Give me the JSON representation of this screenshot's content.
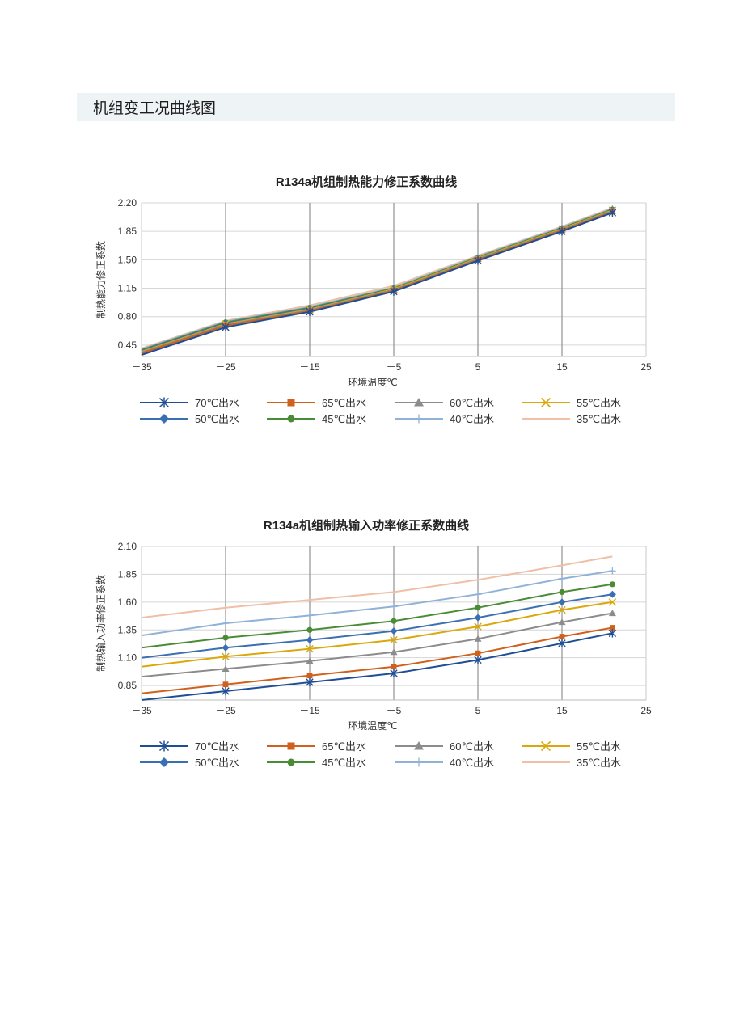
{
  "header": {
    "title": "机组变工况曲线图"
  },
  "colors": {
    "70": "#1f4e96",
    "65": "#d0611c",
    "60": "#8c8c8c",
    "55": "#dba80c",
    "50": "#3b6fb3",
    "45": "#4a8c35",
    "40": "#8fb2d6",
    "35": "#efbfa6"
  },
  "chart_data": [
    {
      "type": "line",
      "title": "R134a机组制热能力修正系数曲线",
      "xlabel": "环境温度℃",
      "ylabel": "制热能力修正系数",
      "x_ticks": [
        "－35",
        "－25",
        "－15",
        "－5",
        "5",
        "15",
        "25"
      ],
      "y_ticks": [
        "2.20",
        "1.85",
        "1.50",
        "1.15",
        "0.80",
        "0.45"
      ],
      "xlim": [
        -35,
        25
      ],
      "ylim": [
        0.31,
        2.2
      ],
      "grid": "vertical and horizontal",
      "legend_position": "bottom",
      "x": [
        -35,
        -25,
        -15,
        -5,
        5,
        15,
        21
      ],
      "series": [
        {
          "name": "70℃出水",
          "key": "70",
          "marker": "asterisk",
          "values": [
            0.33,
            0.67,
            0.86,
            1.11,
            1.49,
            1.85,
            2.08
          ]
        },
        {
          "name": "65℃出水",
          "key": "65",
          "marker": "square",
          "values": [
            0.35,
            0.69,
            0.87,
            1.12,
            1.5,
            1.86,
            2.09
          ]
        },
        {
          "name": "60℃出水",
          "key": "60",
          "marker": "triangle",
          "values": [
            0.36,
            0.7,
            0.88,
            1.13,
            1.51,
            1.87,
            2.1
          ]
        },
        {
          "name": "55℃出水",
          "key": "55",
          "marker": "x",
          "values": [
            0.37,
            0.71,
            0.89,
            1.14,
            1.52,
            1.88,
            2.11
          ]
        },
        {
          "name": "50℃出水",
          "key": "50",
          "marker": "diamond",
          "values": [
            0.38,
            0.72,
            0.9,
            1.14,
            1.52,
            1.88,
            2.11
          ]
        },
        {
          "name": "45℃出水",
          "key": "45",
          "marker": "circle",
          "values": [
            0.39,
            0.73,
            0.91,
            1.15,
            1.53,
            1.89,
            2.12
          ]
        },
        {
          "name": "40℃出水",
          "key": "40",
          "marker": "plus",
          "values": [
            0.4,
            0.74,
            0.92,
            1.16,
            1.54,
            1.9,
            2.13
          ]
        },
        {
          "name": "35℃出水",
          "key": "35",
          "marker": "none",
          "values": [
            0.41,
            0.75,
            0.94,
            1.18,
            1.55,
            1.91,
            2.14
          ]
        }
      ]
    },
    {
      "type": "line",
      "title": "R134a机组制热输入功率修正系数曲线",
      "xlabel": "环境温度℃",
      "ylabel": "制热输入功率修正系数",
      "x_ticks": [
        "－35",
        "－25",
        "－15",
        "－5",
        "5",
        "15",
        "25"
      ],
      "y_ticks": [
        "2.10",
        "1.85",
        "1.60",
        "1.35",
        "1.10",
        "0.85"
      ],
      "xlim": [
        -35,
        25
      ],
      "ylim": [
        0.72,
        2.1
      ],
      "grid": "vertical and horizontal",
      "legend_position": "bottom",
      "x": [
        -35,
        -25,
        -15,
        -5,
        5,
        15,
        21
      ],
      "series": [
        {
          "name": "70℃出水",
          "key": "70",
          "marker": "asterisk",
          "values": [
            0.72,
            0.8,
            0.88,
            0.96,
            1.08,
            1.23,
            1.32
          ]
        },
        {
          "name": "65℃出水",
          "key": "65",
          "marker": "square",
          "values": [
            0.78,
            0.86,
            0.94,
            1.02,
            1.14,
            1.29,
            1.37
          ]
        },
        {
          "name": "60℃出水",
          "key": "60",
          "marker": "triangle",
          "values": [
            0.93,
            1.0,
            1.07,
            1.15,
            1.27,
            1.42,
            1.5
          ]
        },
        {
          "name": "55℃出水",
          "key": "55",
          "marker": "x",
          "values": [
            1.02,
            1.11,
            1.18,
            1.26,
            1.38,
            1.53,
            1.6
          ]
        },
        {
          "name": "50℃出水",
          "key": "50",
          "marker": "diamond",
          "values": [
            1.1,
            1.19,
            1.26,
            1.34,
            1.46,
            1.6,
            1.67
          ]
        },
        {
          "name": "45℃出水",
          "key": "45",
          "marker": "circle",
          "values": [
            1.19,
            1.28,
            1.35,
            1.43,
            1.55,
            1.69,
            1.76
          ]
        },
        {
          "name": "40℃出水",
          "key": "40",
          "marker": "plus",
          "values": [
            1.3,
            1.41,
            1.48,
            1.56,
            1.67,
            1.81,
            1.88
          ]
        },
        {
          "name": "35℃出水",
          "key": "35",
          "marker": "none",
          "values": [
            1.46,
            1.55,
            1.62,
            1.69,
            1.8,
            1.93,
            2.01
          ]
        }
      ]
    }
  ]
}
